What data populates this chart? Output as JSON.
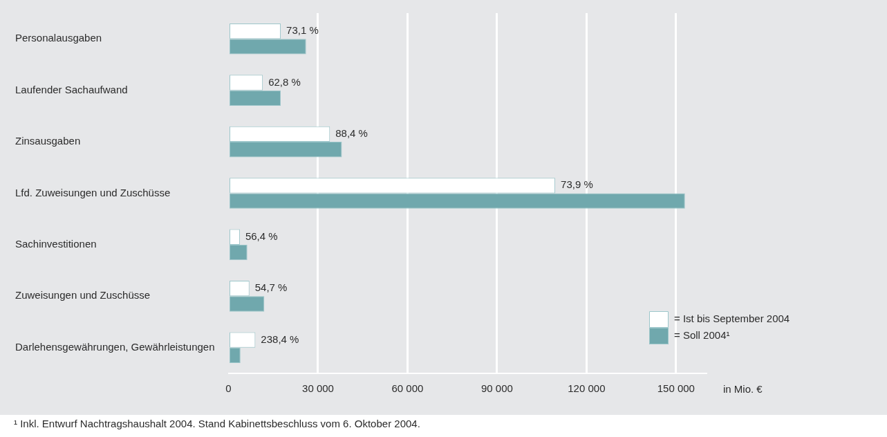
{
  "chart_data": {
    "type": "bar",
    "orientation": "horizontal",
    "categories": [
      "Personalausgaben",
      "Laufender Sachaufwand",
      "Zinsausgaben",
      "Lfd. Zuweisungen und Zuschüsse",
      "Sachinvestitionen",
      "Zuweisungen und Zuschüsse",
      "Darlehensgewährungen, Gewährleistungen"
    ],
    "series": [
      {
        "name": "= Ist bis September 2004",
        "color": "#ffffff",
        "values": [
          17500,
          11500,
          34000,
          109500,
          3800,
          7000,
          9000
        ]
      },
      {
        "name": "= Soll 2004¹",
        "color": "#70a8ad",
        "values": [
          26000,
          17500,
          38000,
          153000,
          6300,
          12000,
          4000
        ]
      }
    ],
    "xlabel": "in Mio. €",
    "xlim": [
      0,
      160000
    ],
    "xticks": [
      {
        "value": 0,
        "label": "0"
      },
      {
        "value": 30000,
        "label": "30 000"
      },
      {
        "value": 60000,
        "label": "60 000"
      },
      {
        "value": 90000,
        "label": "90 000"
      },
      {
        "value": 120000,
        "label": "120 000"
      },
      {
        "value": 150000,
        "label": "150 000"
      }
    ],
    "grid": "x",
    "legend": "bottom right",
    "annotations": [
      {
        "text": "73,1 %",
        "x": 17500,
        "y": "Personalausgaben"
      },
      {
        "text": "62,8 %",
        "x": 11500,
        "y": "Laufender Sachaufwand"
      },
      {
        "text": "88,4 %",
        "x": 34000,
        "y": "Zinsausgaben"
      },
      {
        "text": "73,9 %",
        "x": 109500,
        "y": "Lfd. Zuweisungen und Zuschüsse"
      },
      {
        "text": "56,4 %",
        "x": 3800,
        "y": "Sachinvestitionen"
      },
      {
        "text": "54,7 %",
        "x": 7000,
        "y": "Zuweisungen und Zuschüsse"
      },
      {
        "text": "238,4 %",
        "x": 9000,
        "y": "Darlehensgewährungen, Gewährleistungen"
      },
      "¹ Inkl. Entwurf Nachtragshaushalt 2004. Stand Kabinettsbeschluss vom 6. Oktober 2004."
    ]
  }
}
